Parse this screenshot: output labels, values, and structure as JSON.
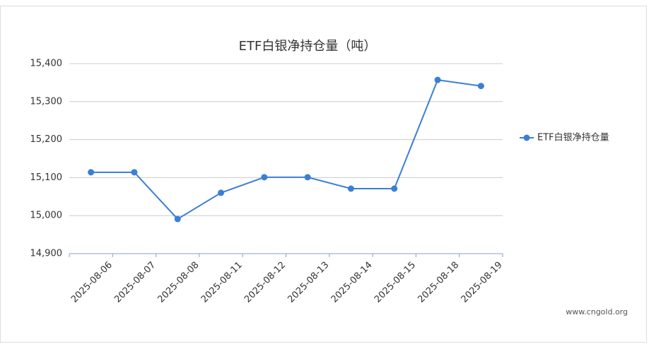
{
  "chart_data": {
    "type": "line",
    "title": "ETF白银净持仓量（吨）",
    "watermark": "www.cngold.org",
    "categories": [
      "2025-08-06",
      "2025-08-07",
      "2025-08-08",
      "2025-08-11",
      "2025-08-12",
      "2025-08-13",
      "2025-08-14",
      "2025-08-15",
      "2025-08-18",
      "2025-08-19"
    ],
    "series": [
      {
        "name": "ETF白银净持仓量",
        "color": "#3a7fd5",
        "values": [
          15114,
          15114,
          14991,
          15060,
          15101,
          15101,
          15071,
          15071,
          15357,
          15341
        ]
      }
    ],
    "ylim": [
      14900,
      15400
    ],
    "yticks": [
      {
        "value": 14900,
        "label": "14,900"
      },
      {
        "value": 15000,
        "label": "15,000"
      },
      {
        "value": 15100,
        "label": "15,100"
      },
      {
        "value": 15200,
        "label": "15,200"
      },
      {
        "value": 15300,
        "label": "15,300"
      },
      {
        "value": 15400,
        "label": "15,400"
      }
    ],
    "grid": true,
    "legend": "right"
  }
}
